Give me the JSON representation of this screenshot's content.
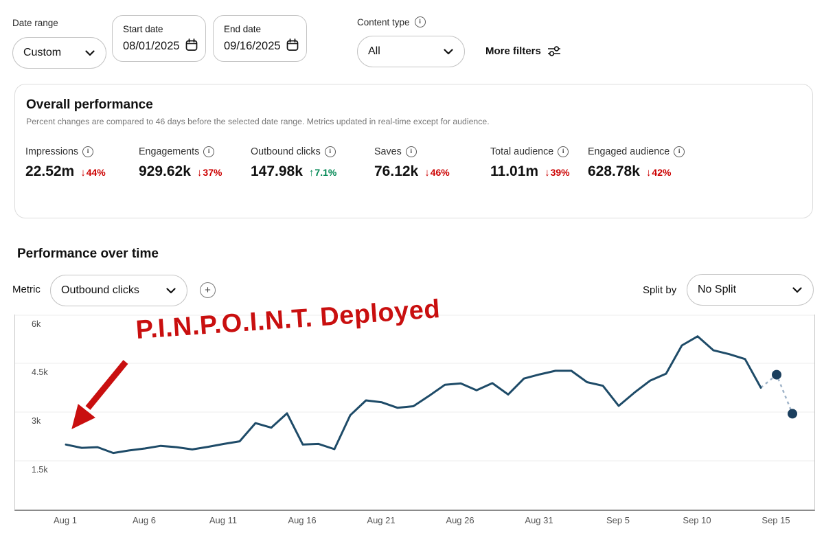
{
  "filters": {
    "date_range": {
      "label": "Date range",
      "value": "Custom"
    },
    "start_date": {
      "label": "Start date",
      "value": "08/01/2025"
    },
    "end_date": {
      "label": "End date",
      "value": "09/16/2025"
    },
    "content_type": {
      "label": "Content type",
      "value": "All"
    },
    "more_filters_label": "More filters"
  },
  "overall": {
    "title": "Overall performance",
    "subtitle": "Percent changes are compared to 46 days before the selected date range. Metrics updated in real-time except for audience.",
    "metrics": [
      {
        "label": "Impressions",
        "value": "22.52m",
        "arrow": "↓",
        "delta": "44%",
        "delta_color": "#cc0000"
      },
      {
        "label": "Engagements",
        "value": "929.62k",
        "arrow": "↓",
        "delta": "37%",
        "delta_color": "#cc0000"
      },
      {
        "label": "Outbound clicks",
        "value": "147.98k",
        "arrow": "↑",
        "delta": "7.1%",
        "delta_color": "#008753"
      },
      {
        "label": "Saves",
        "value": "76.12k",
        "arrow": "↓",
        "delta": "46%",
        "delta_color": "#cc0000"
      },
      {
        "label": "Total audience",
        "value": "11.01m",
        "arrow": "↓",
        "delta": "39%",
        "delta_color": "#cc0000"
      },
      {
        "label": "Engaged audience",
        "value": "628.78k",
        "arrow": "↓",
        "delta": "42%",
        "delta_color": "#cc0000"
      }
    ]
  },
  "performance": {
    "title": "Performance over time",
    "metric_label": "Metric",
    "metric_value": "Outbound clicks",
    "split_label": "Split by",
    "split_value": "No Split"
  },
  "annotation": {
    "text": "P.I.N.P.O.I.N.T. Deployed",
    "color": "#c90f0f"
  },
  "icons": {
    "info_glyph": "i",
    "plus_glyph": "+"
  },
  "chart_data": {
    "type": "line",
    "title": "Performance over time",
    "metric": "Outbound clicks",
    "ylabel": "Outbound clicks",
    "xlabel": "",
    "grid": true,
    "ylim": [
      0,
      6000
    ],
    "y_ticks": [
      {
        "label": "1.5k",
        "value": 1500
      },
      {
        "label": "3k",
        "value": 3000
      },
      {
        "label": "4.5k",
        "value": 4500
      },
      {
        "label": "6k",
        "value": 6000
      }
    ],
    "x_ticks": [
      {
        "label": "Aug 1",
        "index": 0
      },
      {
        "label": "Aug 6",
        "index": 5
      },
      {
        "label": "Aug 11",
        "index": 10
      },
      {
        "label": "Aug 16",
        "index": 15
      },
      {
        "label": "Aug 21",
        "index": 20
      },
      {
        "label": "Aug 26",
        "index": 25
      },
      {
        "label": "Aug 31",
        "index": 30
      },
      {
        "label": "Sep 5",
        "index": 35
      },
      {
        "label": "Sep 10",
        "index": 40
      },
      {
        "label": "Sep 15",
        "index": 45
      }
    ],
    "x": [
      "Aug 1",
      "Aug 2",
      "Aug 3",
      "Aug 4",
      "Aug 5",
      "Aug 6",
      "Aug 7",
      "Aug 8",
      "Aug 9",
      "Aug 10",
      "Aug 11",
      "Aug 12",
      "Aug 13",
      "Aug 14",
      "Aug 15",
      "Aug 16",
      "Aug 17",
      "Aug 18",
      "Aug 19",
      "Aug 20",
      "Aug 21",
      "Aug 22",
      "Aug 23",
      "Aug 24",
      "Aug 25",
      "Aug 26",
      "Aug 27",
      "Aug 28",
      "Aug 29",
      "Aug 30",
      "Aug 31",
      "Sep 1",
      "Sep 2",
      "Sep 3",
      "Sep 4",
      "Sep 5",
      "Sep 6",
      "Sep 7",
      "Sep 8",
      "Sep 9",
      "Sep 10",
      "Sep 11",
      "Sep 12",
      "Sep 13",
      "Sep 14",
      "Sep 15",
      "Sep 16"
    ],
    "series": [
      {
        "name": "Outbound clicks",
        "values": [
          2000,
          1900,
          1920,
          1740,
          1820,
          1880,
          1960,
          1920,
          1850,
          1930,
          2020,
          2100,
          2660,
          2520,
          2960,
          2000,
          2020,
          1860,
          2900,
          3360,
          3300,
          3130,
          3180,
          3500,
          3840,
          3880,
          3670,
          3890,
          3540,
          4030,
          4160,
          4270,
          4270,
          3920,
          3810,
          3190,
          3600,
          3970,
          4180,
          5050,
          5330,
          4900,
          4780,
          4630,
          3750,
          4150,
          2950
        ]
      }
    ],
    "estimated_last_n": 2,
    "line_color": "#1e4b68",
    "dot_color": "#1b3f5e",
    "estimated_color": "#9fb3c8",
    "gridline_color": "#ececec"
  }
}
